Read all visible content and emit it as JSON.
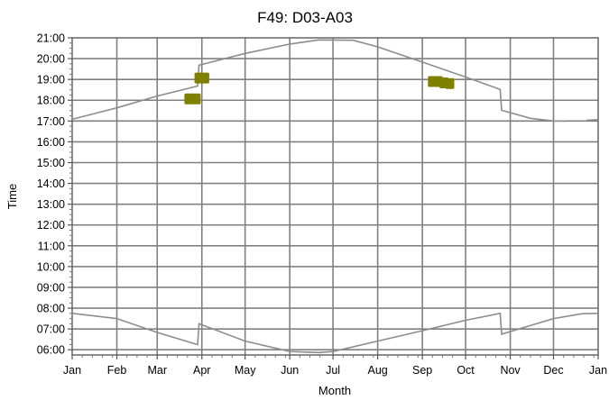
{
  "chart_data": {
    "type": "line",
    "title": "F49: D03-A03",
    "xlabel": "Month",
    "ylabel": "Time",
    "x_ticks": [
      "Jan",
      "Feb",
      "Mar",
      "Apr",
      "May",
      "Jun",
      "Jul",
      "Aug",
      "Sep",
      "Oct",
      "Nov",
      "Dec",
      "Jan"
    ],
    "y_ticks": [
      "06:00",
      "07:00",
      "08:00",
      "09:00",
      "10:00",
      "11:00",
      "12:00",
      "13:00",
      "14:00",
      "15:00",
      "16:00",
      "17:00",
      "18:00",
      "19:00",
      "20:00",
      "21:00"
    ],
    "xlim": [
      "Jan",
      "Jan"
    ],
    "ylim": [
      "05:45",
      "21:00"
    ],
    "grid": true,
    "colors": {
      "lines": "#8c8c8c",
      "markers": "#808000",
      "grid": "#808080"
    },
    "series": [
      {
        "values": [
          [
            "Jan 1",
            "17:05"
          ],
          [
            "Feb 1",
            "17:38"
          ],
          [
            "Mar 1",
            "18:12"
          ],
          [
            "Mar 29",
            "18:41"
          ],
          [
            "Mar 30",
            "19:41"
          ],
          [
            "May 1",
            "20:15"
          ],
          [
            "Jun 1",
            "20:42"
          ],
          [
            "Jun 21",
            "20:54"
          ],
          [
            "Jul 15",
            "20:53"
          ],
          [
            "Aug 1",
            "20:34"
          ],
          [
            "Sep 1",
            "19:50"
          ],
          [
            "Oct 1",
            "19:07"
          ],
          [
            "Oct 25",
            "18:31"
          ],
          [
            "Oct 26",
            "17:31"
          ],
          [
            "Nov 15",
            "17:08"
          ],
          [
            "Dec 1",
            "17:00"
          ],
          [
            "Dec 10",
            "17:00"
          ]
        ]
      },
      {
        "values": [
          [
            "Dec 24",
            "17:02"
          ],
          [
            "Jan 1",
            "17:04"
          ]
        ]
      },
      {
        "values": [
          [
            "Jan 1",
            "07:45"
          ],
          [
            "Feb 1",
            "07:30"
          ],
          [
            "Mar 1",
            "06:50"
          ],
          [
            "Mar 29",
            "06:15"
          ],
          [
            "Mar 30",
            "07:15"
          ],
          [
            "May 1",
            "06:25"
          ],
          [
            "Jun 1",
            "05:55"
          ],
          [
            "Jun 21",
            "05:52"
          ],
          [
            "Jul 1",
            "05:55"
          ],
          [
            "Aug 1",
            "06:25"
          ],
          [
            "Sep 1",
            "06:55"
          ],
          [
            "Oct 1",
            "07:25"
          ],
          [
            "Oct 25",
            "07:45"
          ],
          [
            "Oct 26",
            "06:45"
          ],
          [
            "Dec 1",
            "07:30"
          ],
          [
            "Dec 21",
            "07:44"
          ],
          [
            "Jan 1",
            "07:45"
          ]
        ]
      }
    ],
    "markers": [
      {
        "values": [
          [
            "Mar 23",
            "18:04"
          ],
          [
            "Mar 28",
            "18:04"
          ]
        ]
      },
      {
        "values": [
          [
            "Mar 30",
            "19:04"
          ],
          [
            "Apr 3",
            "19:04"
          ]
        ]
      },
      {
        "values": [
          [
            "Sep 8",
            "18:54"
          ],
          [
            "Sep 12",
            "18:54"
          ],
          [
            "Sep 16",
            "18:50"
          ],
          [
            "Sep 20",
            "18:48"
          ]
        ]
      }
    ]
  }
}
